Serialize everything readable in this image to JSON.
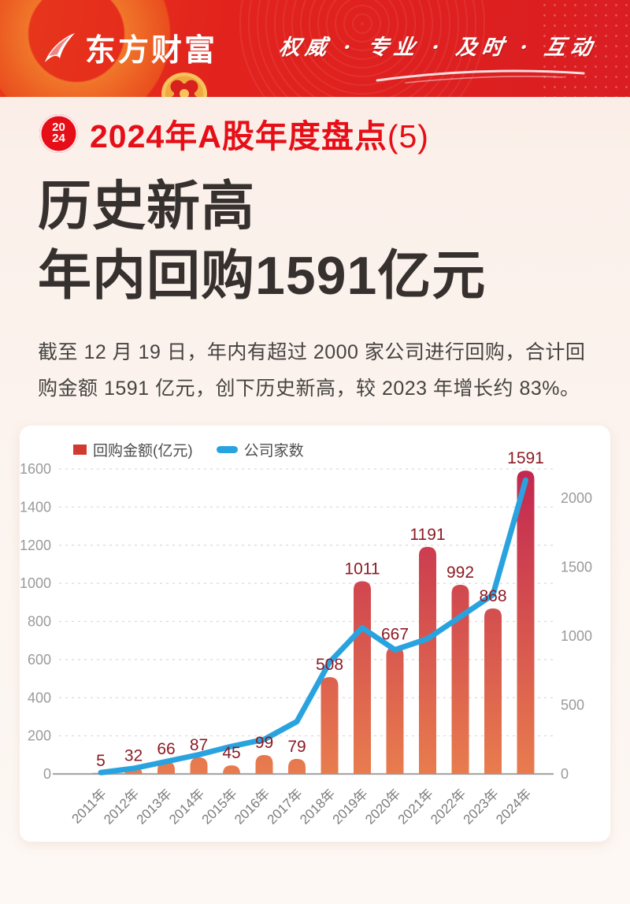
{
  "colors": {
    "brand_red": "#e2231d",
    "title_red": "#e60e17",
    "text_dark": "#36312e"
  },
  "header": {
    "brand": "东方财富",
    "slogan": "权威 · 专业 · 及时 · 互动"
  },
  "badge": {
    "year_top": "20",
    "year_bottom": "24",
    "title": "2024年A股年度盘点",
    "title_suffix": "(5)"
  },
  "title": {
    "line1": "历史新高",
    "line2": "年内回购1591亿元"
  },
  "description": "截至 12 月 19 日，年内有超过 2000 家公司进行回购，合计回购金额 1591 亿元，创下历史新高，较 2023 年增长约 83%。",
  "chart_data": {
    "type": "bar+line combo",
    "categories": [
      "2011年",
      "2012年",
      "2013年",
      "2014年",
      "2015年",
      "2016年",
      "2017年",
      "2018年",
      "2019年",
      "2020年",
      "2021年",
      "2022年",
      "2023年",
      "2024年"
    ],
    "series": [
      {
        "name": "回购金额(亿元)",
        "type": "bar",
        "axis": "left",
        "values": [
          5,
          32,
          66,
          87,
          45,
          99,
          79,
          508,
          1011,
          667,
          1191,
          992,
          868,
          1591
        ],
        "color_top": "#c22750",
        "color_bottom": "#e87c4e",
        "label_color": "#8c1b24"
      },
      {
        "name": "公司家数",
        "type": "line",
        "axis": "right",
        "estimated_from_plot": true,
        "values": [
          10,
          40,
          90,
          140,
          200,
          250,
          380,
          810,
          1060,
          900,
          980,
          1140,
          1300,
          2130
        ],
        "color": "#29a3df"
      }
    ],
    "left_axis": {
      "min": 0,
      "max": 1600,
      "step": 200
    },
    "right_axis": {
      "min": 0,
      "max": 2000,
      "ticks": [
        0,
        500,
        1000,
        1500,
        2000
      ]
    },
    "grid": "dashed horizontal, left-axis ticks only",
    "legend_position": "top-left"
  }
}
